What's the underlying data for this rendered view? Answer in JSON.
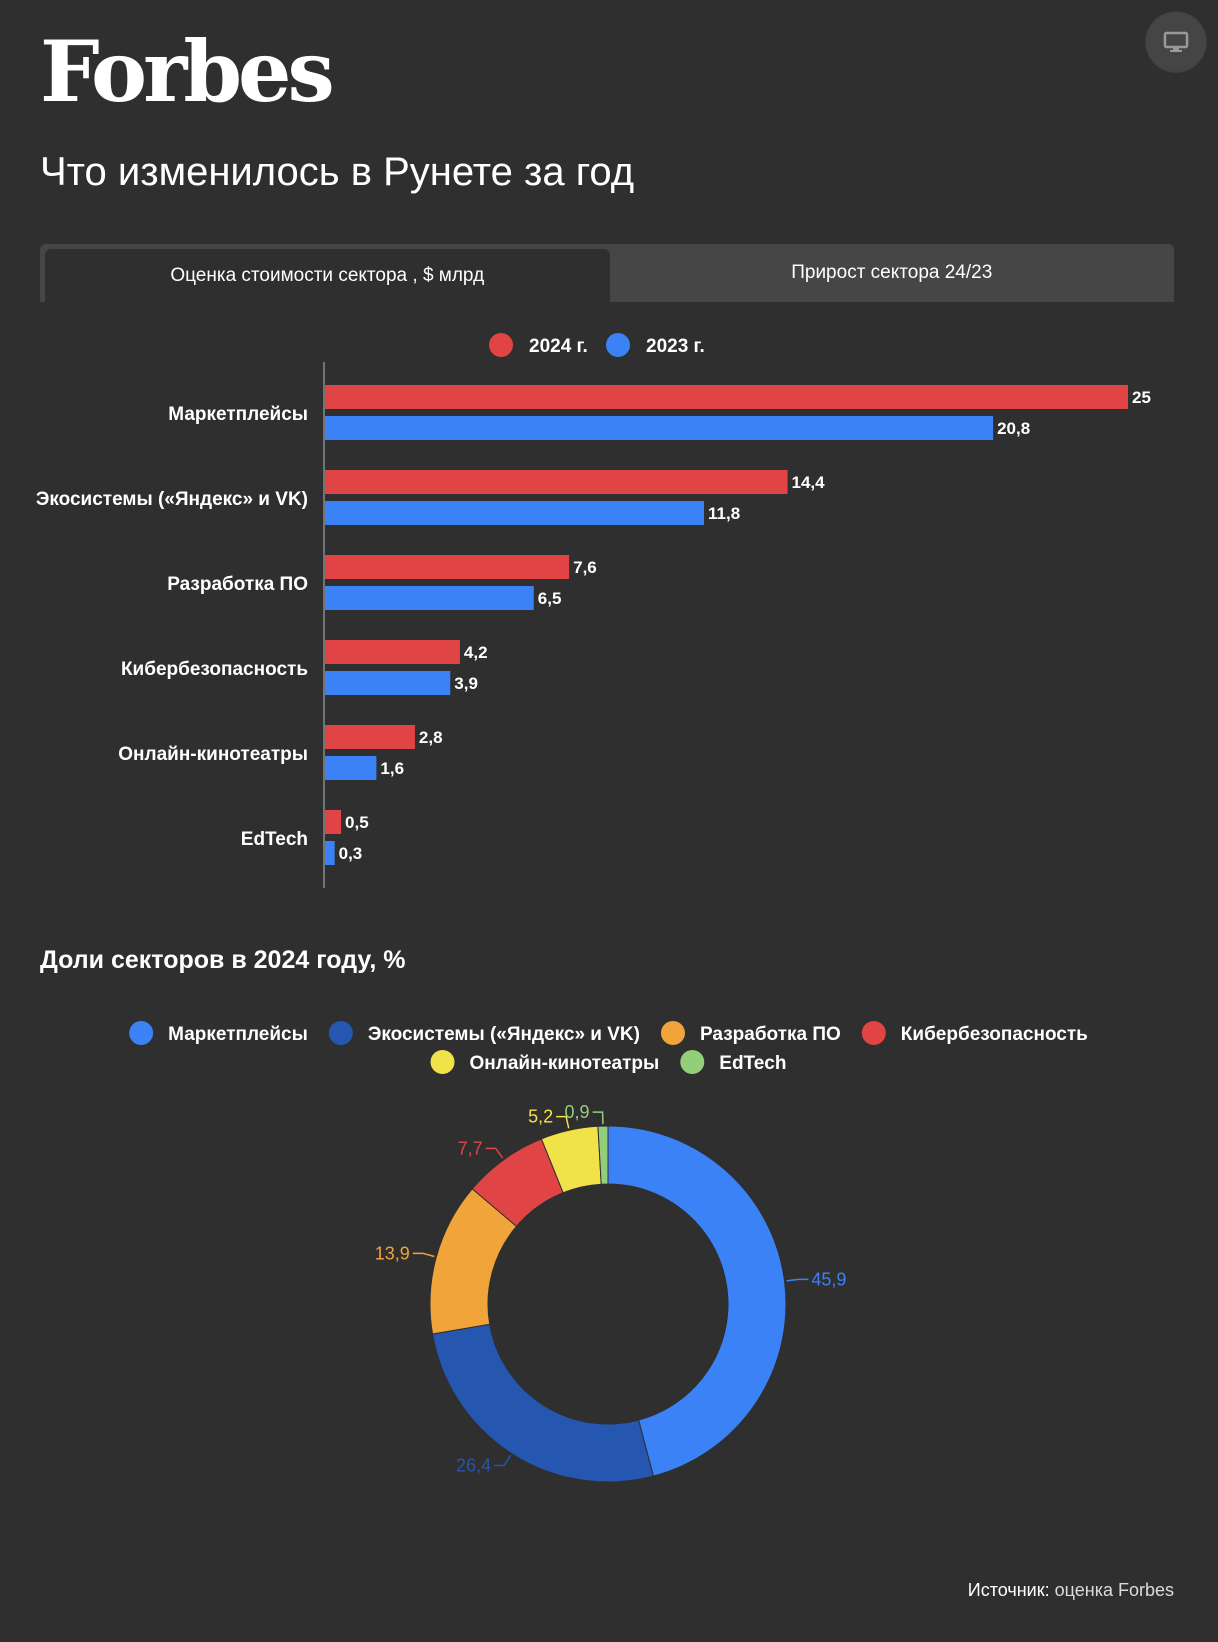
{
  "brand": "Forbes",
  "title": "Что изменилось в Рунете за год",
  "tabs": [
    {
      "label": "Оценка стоимости сектора , $ млрд",
      "active": true
    },
    {
      "label": "Прирост сектора 24/23",
      "active": false
    }
  ],
  "pie_title": "Доли секторов в 2024 году, %",
  "source": {
    "label": "Источник:",
    "value": "оценка Forbes"
  },
  "icons": {
    "screen": "monitor-icon"
  },
  "chart_data": [
    {
      "type": "bar",
      "orientation": "horizontal",
      "title": "Оценка стоимости сектора , $ млрд",
      "categories": [
        "Маркетплейсы",
        "Экосистемы («Яндекс» и VK)",
        "Разработка ПО",
        "Кибербезопасность",
        "Онлайн-кинотеатры",
        "EdTech"
      ],
      "series": [
        {
          "name": "2024 г.",
          "color": "#e04444",
          "values": [
            25,
            14.4,
            7.6,
            4.2,
            2.8,
            0.5
          ],
          "labels": [
            "25",
            "14,4",
            "7,6",
            "4,2",
            "2,8",
            "0,5"
          ]
        },
        {
          "name": "2023 г.",
          "color": "#3a82f6",
          "values": [
            20.8,
            11.8,
            6.5,
            3.9,
            1.6,
            0.3
          ],
          "labels": [
            "20,8",
            "11,8",
            "6,5",
            "3,9",
            "1,6",
            "0,3"
          ]
        }
      ],
      "xlim": [
        0,
        25
      ],
      "legend": "top-center",
      "grid": false
    },
    {
      "type": "pie",
      "donut": true,
      "title": "Доли секторов в 2024 году, %",
      "slices": [
        {
          "label": "Маркетплейсы",
          "value": 45.9,
          "text": "45,9",
          "color": "#3b82f6"
        },
        {
          "label": "Экосистемы («Яндекс» и VK)",
          "value": 26.4,
          "text": "26,4",
          "color": "#2556b0"
        },
        {
          "label": "Разработка ПО",
          "value": 13.9,
          "text": "13,9",
          "color": "#f0a43a"
        },
        {
          "label": "Кибербезопасность",
          "value": 7.7,
          "text": "7,7",
          "color": "#e04444"
        },
        {
          "label": "Онлайн-кинотеатры",
          "value": 5.2,
          "text": "5,2",
          "color": "#f2e24a"
        },
        {
          "label": "EdTech",
          "value": 0.9,
          "text": "0,9",
          "color": "#93cf7a"
        }
      ],
      "legend": "top-center"
    }
  ]
}
